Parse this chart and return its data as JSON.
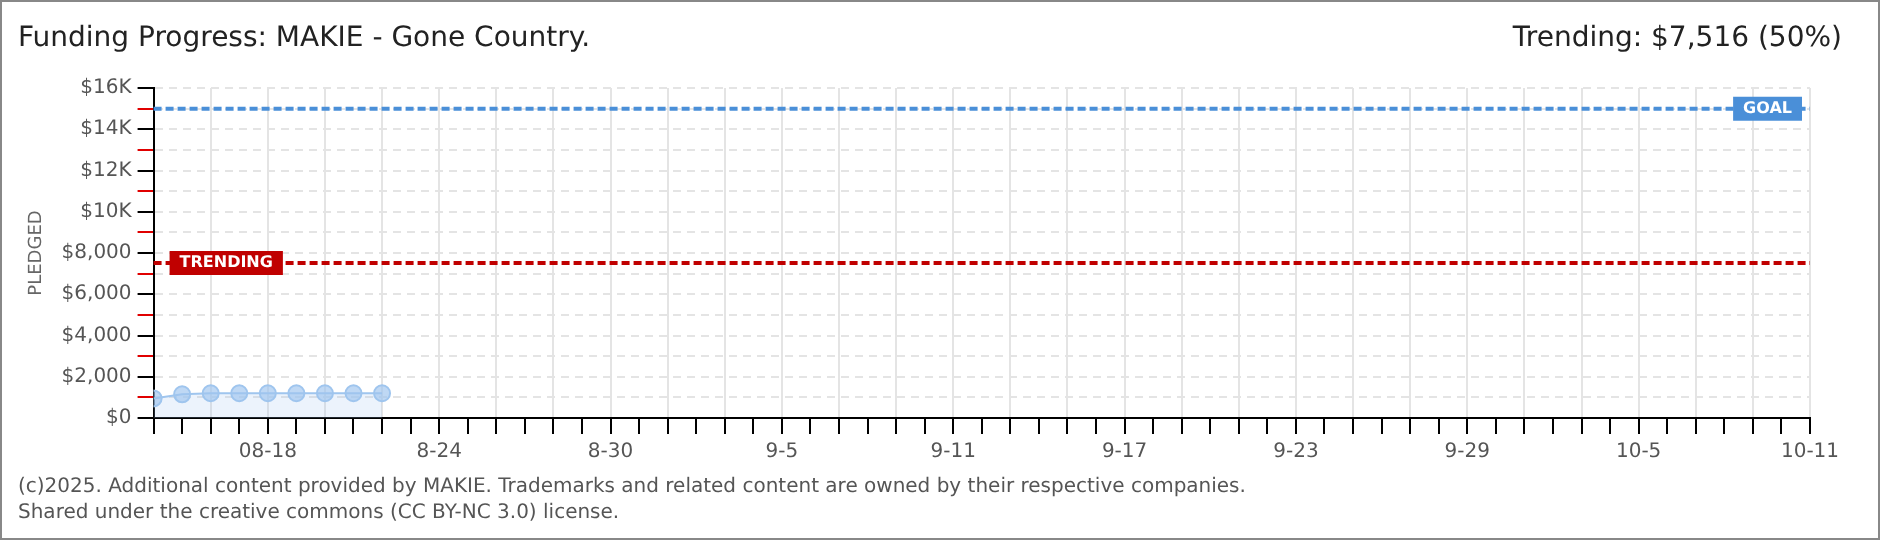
{
  "chart_data": {
    "type": "area",
    "title": "Funding Progress: MAKIE - Gone Country.",
    "subtitle": "Trending: $7,516 (50%)",
    "ylabel": "PLEDGED",
    "x": [
      "2025-08-14",
      "2025-08-15",
      "2025-08-16",
      "2025-08-17",
      "2025-08-18",
      "2025-08-19",
      "2025-08-20",
      "2025-08-21",
      "2025-08-22"
    ],
    "series": [
      {
        "color": "#9fc5ee",
        "values": [
          950,
          1150,
          1200,
          1200,
          1200,
          1200,
          1200,
          1200,
          1200
        ]
      }
    ],
    "marker": "circle",
    "grid": true,
    "legend": false,
    "xlim": [
      "2025-08-14",
      "2025-10-11"
    ],
    "xticks": [
      {
        "value": "2025-08-14",
        "label": null
      },
      {
        "value": "2025-08-15",
        "label": null
      },
      {
        "value": "2025-08-16",
        "label": null
      },
      {
        "value": "2025-08-17",
        "label": null
      },
      {
        "value": "2025-08-18",
        "label": "08-18"
      },
      {
        "value": "2025-08-19",
        "label": null
      },
      {
        "value": "2025-08-20",
        "label": null
      },
      {
        "value": "2025-08-21",
        "label": null
      },
      {
        "value": "2025-08-22",
        "label": null
      },
      {
        "value": "2025-08-23",
        "label": null
      },
      {
        "value": "2025-08-24",
        "label": "8-24"
      },
      {
        "value": "2025-08-25",
        "label": null
      },
      {
        "value": "2025-08-26",
        "label": null
      },
      {
        "value": "2025-08-27",
        "label": null
      },
      {
        "value": "2025-08-28",
        "label": null
      },
      {
        "value": "2025-08-29",
        "label": null
      },
      {
        "value": "2025-08-30",
        "label": "8-30"
      },
      {
        "value": "2025-08-31",
        "label": null
      },
      {
        "value": "2025-09-01",
        "label": null
      },
      {
        "value": "2025-09-02",
        "label": null
      },
      {
        "value": "2025-09-03",
        "label": null
      },
      {
        "value": "2025-09-04",
        "label": null
      },
      {
        "value": "2025-09-05",
        "label": "9-5"
      },
      {
        "value": "2025-09-06",
        "label": null
      },
      {
        "value": "2025-09-07",
        "label": null
      },
      {
        "value": "2025-09-08",
        "label": null
      },
      {
        "value": "2025-09-09",
        "label": null
      },
      {
        "value": "2025-09-10",
        "label": null
      },
      {
        "value": "2025-09-11",
        "label": "9-11"
      },
      {
        "value": "2025-09-12",
        "label": null
      },
      {
        "value": "2025-09-13",
        "label": null
      },
      {
        "value": "2025-09-14",
        "label": null
      },
      {
        "value": "2025-09-15",
        "label": null
      },
      {
        "value": "2025-09-16",
        "label": null
      },
      {
        "value": "2025-09-17",
        "label": "9-17"
      },
      {
        "value": "2025-09-18",
        "label": null
      },
      {
        "value": "2025-09-19",
        "label": null
      },
      {
        "value": "2025-09-20",
        "label": null
      },
      {
        "value": "2025-09-21",
        "label": null
      },
      {
        "value": "2025-09-22",
        "label": null
      },
      {
        "value": "2025-09-23",
        "label": "9-23"
      },
      {
        "value": "2025-09-24",
        "label": null
      },
      {
        "value": "2025-09-25",
        "label": null
      },
      {
        "value": "2025-09-26",
        "label": null
      },
      {
        "value": "2025-09-27",
        "label": null
      },
      {
        "value": "2025-09-28",
        "label": null
      },
      {
        "value": "2025-09-29",
        "label": "9-29"
      },
      {
        "value": "2025-09-30",
        "label": null
      },
      {
        "value": "2025-10-01",
        "label": null
      },
      {
        "value": "2025-10-02",
        "label": null
      },
      {
        "value": "2025-10-03",
        "label": null
      },
      {
        "value": "2025-10-04",
        "label": null
      },
      {
        "value": "2025-10-05",
        "label": "10-5"
      },
      {
        "value": "2025-10-06",
        "label": null
      },
      {
        "value": "2025-10-07",
        "label": null
      },
      {
        "value": "2025-10-08",
        "label": null
      },
      {
        "value": "2025-10-09",
        "label": null
      },
      {
        "value": "2025-10-10",
        "label": null
      },
      {
        "value": "2025-10-11",
        "label": "10-11"
      }
    ],
    "ylim": [
      0,
      16000
    ],
    "yticks": [
      {
        "value": 0,
        "label": "$0"
      },
      {
        "value": 1000,
        "label": null
      },
      {
        "value": 2000,
        "label": "$2,000"
      },
      {
        "value": 3000,
        "label": null
      },
      {
        "value": 4000,
        "label": "$4,000"
      },
      {
        "value": 5000,
        "label": null
      },
      {
        "value": 6000,
        "label": "$6,000"
      },
      {
        "value": 7000,
        "label": null
      },
      {
        "value": 8000,
        "label": "$8,000"
      },
      {
        "value": 9000,
        "label": null
      },
      {
        "value": 10000,
        "label": "$10K"
      },
      {
        "value": 11000,
        "label": null
      },
      {
        "value": 12000,
        "label": "$12K"
      },
      {
        "value": 13000,
        "label": null
      },
      {
        "value": 14000,
        "label": "$14K"
      },
      {
        "value": 15000,
        "label": null
      },
      {
        "value": 16000,
        "label": "$16K"
      }
    ],
    "ref_lines": [
      {
        "axis": "y",
        "value": 15000,
        "label": "GOAL",
        "color": "#4a8fd8",
        "line_style": "dashed"
      },
      {
        "axis": "y",
        "value": 7516,
        "label": "TRENDING",
        "color": "#c00000",
        "line_style": "dashed"
      }
    ],
    "annotations": [
      "(c)2025. Additional content provided by MAKIE. Trademarks and related content are owned by their respective companies.",
      "Shared under the creative commons (CC BY-NC 3.0) license."
    ]
  }
}
